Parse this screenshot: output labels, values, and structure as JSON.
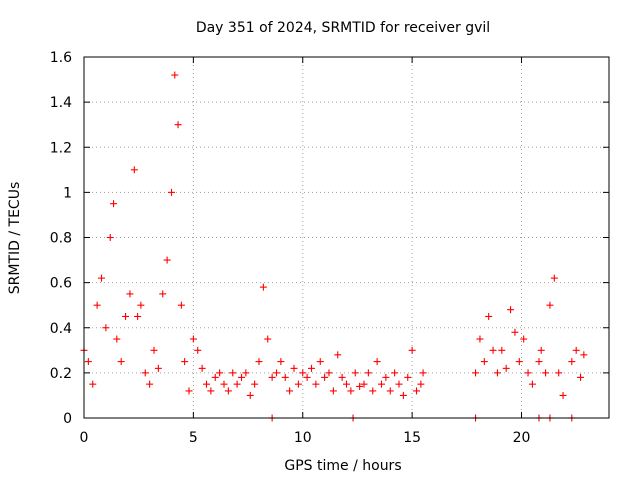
{
  "chart_data": {
    "type": "scatter",
    "title": "Day 351 of 2024, SRMTID for receiver gvil",
    "xlabel": "GPS time / hours",
    "ylabel": "SRMTID / TECUs",
    "xlim": [
      0,
      24
    ],
    "ylim": [
      0,
      1.6
    ],
    "xticks": [
      0,
      5,
      10,
      15,
      20
    ],
    "yticks": [
      0,
      0.2,
      0.4,
      0.6,
      0.8,
      1.0,
      1.2,
      1.4,
      1.6
    ],
    "xtick_labels": [
      "0",
      "5",
      "10",
      "15",
      "20"
    ],
    "ytick_labels": [
      "0",
      "0.2",
      "0.4",
      "0.6",
      "0.8",
      "1",
      "1.2",
      "1.4",
      "1.6"
    ],
    "grid": true,
    "marker": "+",
    "series": [
      {
        "name": "SRMTID",
        "color": "#ff0000",
        "x": [
          0.0,
          0.2,
          0.4,
          0.6,
          0.8,
          1.0,
          1.2,
          1.35,
          1.5,
          1.7,
          1.9,
          2.1,
          2.3,
          2.45,
          2.6,
          2.8,
          3.0,
          3.2,
          3.4,
          3.6,
          3.8,
          4.0,
          4.15,
          4.3,
          4.45,
          4.6,
          4.8,
          5.0,
          5.2,
          5.4,
          5.6,
          5.8,
          6.0,
          6.2,
          6.4,
          6.6,
          6.8,
          7.0,
          7.2,
          7.4,
          7.6,
          7.8,
          8.0,
          8.2,
          8.4,
          8.6,
          8.8,
          9.0,
          9.2,
          9.4,
          9.6,
          9.8,
          10.0,
          10.2,
          10.4,
          10.6,
          10.8,
          11.0,
          11.2,
          11.4,
          11.6,
          11.8,
          12.0,
          12.2,
          12.4,
          12.6,
          12.8,
          13.0,
          13.2,
          13.4,
          13.6,
          13.8,
          14.0,
          14.2,
          14.4,
          14.6,
          14.8,
          15.0,
          15.2,
          15.4,
          15.5,
          17.9,
          18.1,
          18.3,
          18.5,
          18.7,
          18.9,
          19.1,
          19.3,
          19.5,
          19.7,
          19.9,
          20.1,
          20.3,
          20.5,
          20.8,
          20.9,
          21.1,
          21.3,
          21.5,
          21.7,
          21.9,
          22.3,
          22.5,
          22.7,
          22.85
        ],
        "y": [
          0.3,
          0.25,
          0.15,
          0.5,
          0.62,
          0.4,
          0.8,
          0.95,
          0.35,
          0.25,
          0.45,
          0.55,
          1.1,
          0.45,
          0.5,
          0.2,
          0.15,
          0.3,
          0.22,
          0.55,
          0.7,
          1.0,
          1.52,
          1.3,
          0.5,
          0.25,
          0.12,
          0.35,
          0.3,
          0.22,
          0.15,
          0.12,
          0.18,
          0.2,
          0.15,
          0.12,
          0.2,
          0.15,
          0.18,
          0.2,
          0.1,
          0.15,
          0.25,
          0.58,
          0.35,
          0.18,
          0.2,
          0.25,
          0.18,
          0.12,
          0.22,
          0.15,
          0.2,
          0.18,
          0.22,
          0.15,
          0.25,
          0.18,
          0.2,
          0.12,
          0.28,
          0.18,
          0.15,
          0.12,
          0.2,
          0.14,
          0.15,
          0.2,
          0.12,
          0.25,
          0.15,
          0.18,
          0.12,
          0.2,
          0.15,
          0.1,
          0.18,
          0.3,
          0.12,
          0.15,
          0.2,
          0.2,
          0.35,
          0.25,
          0.45,
          0.3,
          0.2,
          0.3,
          0.22,
          0.48,
          0.38,
          0.25,
          0.35,
          0.2,
          0.15,
          0.25,
          0.3,
          0.2,
          0.5,
          0.62,
          0.2,
          0.1,
          0.25,
          0.3,
          0.18,
          0.28
        ]
      },
      {
        "name": "zero-level",
        "color": "#ff0000",
        "x": [
          8.6,
          12.3,
          17.9,
          20.8,
          21.3,
          22.3
        ],
        "y": [
          0,
          0,
          0,
          0,
          0,
          0
        ]
      }
    ]
  }
}
